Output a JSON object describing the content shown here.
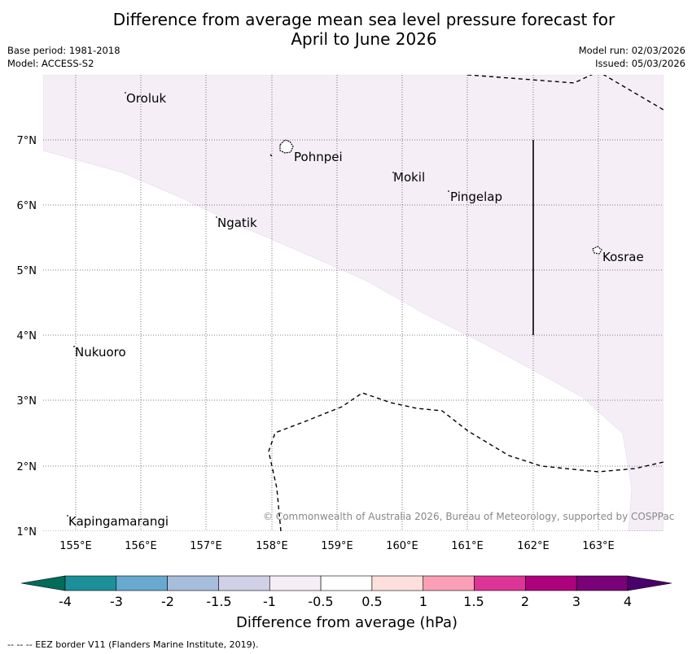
{
  "header": {
    "title_line1": "Difference from average mean sea level pressure forecast for",
    "title_line2": "April to June 2026",
    "base_period": "Base period: 1981-2018",
    "model": "Model: ACCESS-S2",
    "model_run": "Model run: 02/03/2026",
    "issued": "Issued: 05/03/2026"
  },
  "map": {
    "lat_labels": [
      "7°N",
      "6°N",
      "5°N",
      "4°N",
      "3°N",
      "2°N",
      "1°N"
    ],
    "lon_labels": [
      "155°E",
      "156°E",
      "157°E",
      "158°E",
      "159°E",
      "160°E",
      "161°E",
      "162°E",
      "163°E"
    ],
    "places": {
      "oroluk": "Oroluk",
      "pohnpei": "Pohnpei",
      "mokil": "Mokil",
      "pingelap": "Pingelap",
      "ngatik": "Ngatik",
      "kosrae": "Kosrae",
      "nukuoro": "Nukuoro",
      "kapingamarangi": "Kapingamarangi"
    },
    "credit": "© Commonwealth of Australia 2026, Bureau of Meteorology, supported by COSPPac",
    "shade_color": "#f5eef7"
  },
  "colorbar": {
    "labels": [
      "-4",
      "-3",
      "-2",
      "-1.5",
      "-1",
      "-0.5",
      "0.5",
      "1",
      "1.5",
      "2",
      "3",
      "4"
    ],
    "colors": [
      "#1c9099",
      "#67a9cf",
      "#a6bddb",
      "#d0d1e6",
      "#f5eef7",
      "#ffffff",
      "#fde0dd",
      "#fa9fb5",
      "#dd3497",
      "#ae017e",
      "#7a0177"
    ],
    "low_color": "#016c59",
    "high_color": "#49006a",
    "title": "Difference from average (hPa)"
  },
  "footer": {
    "eez_note": "--  --  -- EEZ border V11 (Flanders Marine Institute, 2019)."
  }
}
